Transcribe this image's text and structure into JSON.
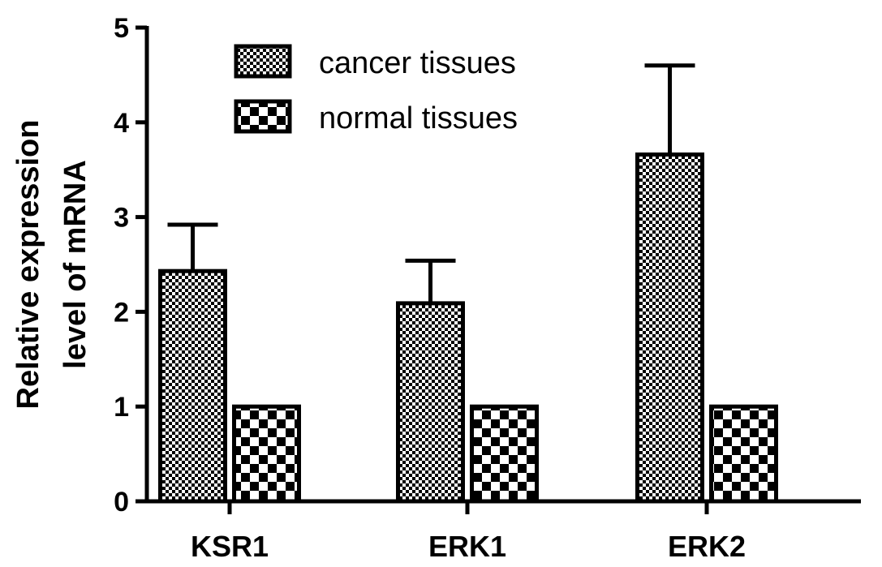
{
  "chart_data": {
    "type": "bar",
    "title": "",
    "xlabel": "",
    "ylabel_lines": [
      "Relative expression",
      "level of mRNA"
    ],
    "categories": [
      "KSR1",
      "ERK1",
      "ERK2"
    ],
    "yticks": [
      "0",
      "1",
      "2",
      "3",
      "4",
      "5"
    ],
    "ylim": [
      0,
      5
    ],
    "series": [
      {
        "name": "cancer tissues",
        "values": [
          2.43,
          2.09,
          3.66
        ],
        "errors": [
          0.49,
          0.45,
          0.94
        ],
        "pattern": "fine-checker"
      },
      {
        "name": "normal tissues",
        "values": [
          1.0,
          1.0,
          1.0
        ],
        "errors": [
          0,
          0,
          0
        ],
        "pattern": "coarse-checker"
      }
    ],
    "legend": {
      "placement": "top-center"
    },
    "grid": false
  }
}
